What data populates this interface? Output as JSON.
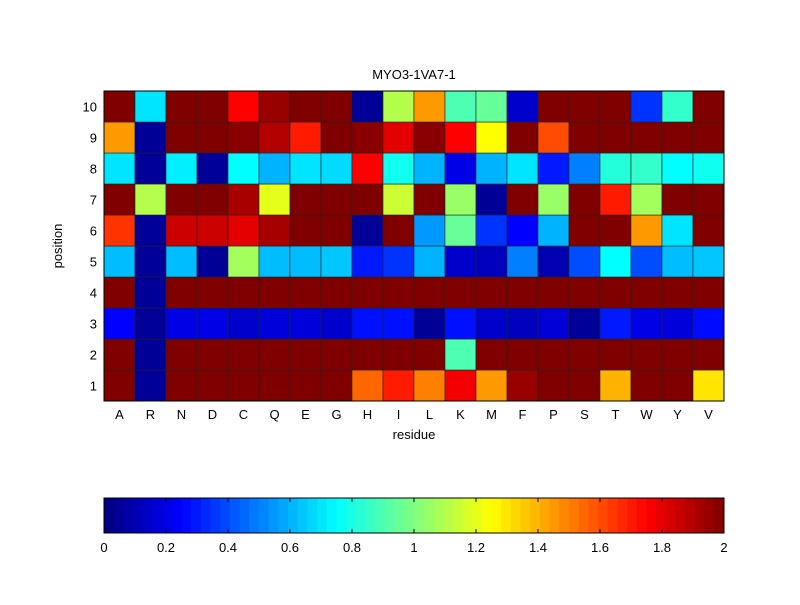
{
  "chart_data": {
    "type": "heatmap",
    "title": "MYO3-1VA7-1",
    "xlabel": "residue",
    "ylabel": "position",
    "x_categories": [
      "A",
      "R",
      "N",
      "D",
      "C",
      "Q",
      "E",
      "G",
      "H",
      "I",
      "L",
      "K",
      "M",
      "F",
      "P",
      "S",
      "T",
      "W",
      "Y",
      "V"
    ],
    "y_categories": [
      "1",
      "2",
      "3",
      "4",
      "5",
      "6",
      "7",
      "8",
      "9",
      "10"
    ],
    "colormap": "jet",
    "clim": [
      0,
      2
    ],
    "colorbar": {
      "placement": "bottom",
      "ticks": [
        0,
        0.2,
        0.4,
        0.6,
        0.8,
        1,
        1.2,
        1.4,
        1.6,
        1.8,
        2
      ],
      "tick_labels": [
        "0",
        "0.2",
        "0.4",
        "0.6",
        "0.8",
        "1",
        "1.2",
        "1.4",
        "1.6",
        "1.8",
        "2"
      ]
    },
    "values_by_position": {
      "10": [
        2,
        0.7,
        2,
        2,
        1.75,
        1.95,
        2,
        2,
        0.05,
        1.1,
        1.45,
        0.9,
        0.95,
        0.15,
        2,
        2,
        2,
        0.35,
        0.85,
        2
      ],
      "9": [
        1.45,
        0.05,
        2,
        2,
        1.98,
        1.9,
        1.7,
        2,
        1.98,
        1.8,
        1.98,
        1.75,
        1.25,
        2,
        1.6,
        2,
        2,
        2,
        2,
        2
      ],
      "8": [
        0.7,
        0.05,
        0.72,
        0.05,
        0.75,
        0.6,
        0.7,
        0.68,
        1.75,
        0.78,
        0.6,
        0.2,
        0.6,
        0.7,
        0.3,
        0.5,
        0.82,
        0.85,
        0.75,
        0.78
      ],
      "7": [
        2,
        1.1,
        2,
        2,
        1.92,
        1.2,
        2,
        2,
        2,
        1.15,
        2,
        1.05,
        0.05,
        2,
        1.05,
        2,
        1.7,
        1.07,
        2,
        2
      ],
      "6": [
        1.65,
        0.05,
        1.85,
        1.85,
        1.8,
        1.92,
        2,
        2,
        0.05,
        2,
        0.55,
        0.95,
        0.35,
        0.25,
        0.6,
        2,
        2,
        1.45,
        0.7,
        2
      ],
      "5": [
        0.62,
        0.05,
        0.62,
        0.05,
        1.07,
        0.62,
        0.62,
        0.64,
        0.3,
        0.35,
        0.6,
        0.15,
        0.12,
        0.5,
        0.1,
        0.4,
        0.75,
        0.4,
        0.62,
        0.64
      ],
      "4": [
        2,
        0.05,
        2,
        2,
        2,
        2,
        2,
        2,
        2,
        2,
        2,
        2,
        2,
        2,
        2,
        2,
        2,
        2,
        2,
        2
      ],
      "3": [
        0.25,
        0.05,
        0.2,
        0.2,
        0.15,
        0.18,
        0.18,
        0.15,
        0.28,
        0.28,
        0.05,
        0.28,
        0.15,
        0.12,
        0.17,
        0.05,
        0.3,
        0.2,
        0.18,
        0.27
      ],
      "2": [
        2,
        0.05,
        2,
        2,
        2,
        2,
        2,
        2,
        2,
        2,
        2,
        0.9,
        2,
        2,
        2,
        2,
        2,
        2,
        2,
        2
      ],
      "1": [
        2,
        0.05,
        2,
        2,
        2,
        2,
        2,
        2,
        1.55,
        1.7,
        1.5,
        1.77,
        1.45,
        1.95,
        2,
        2,
        1.4,
        2,
        2,
        1.3
      ]
    }
  }
}
